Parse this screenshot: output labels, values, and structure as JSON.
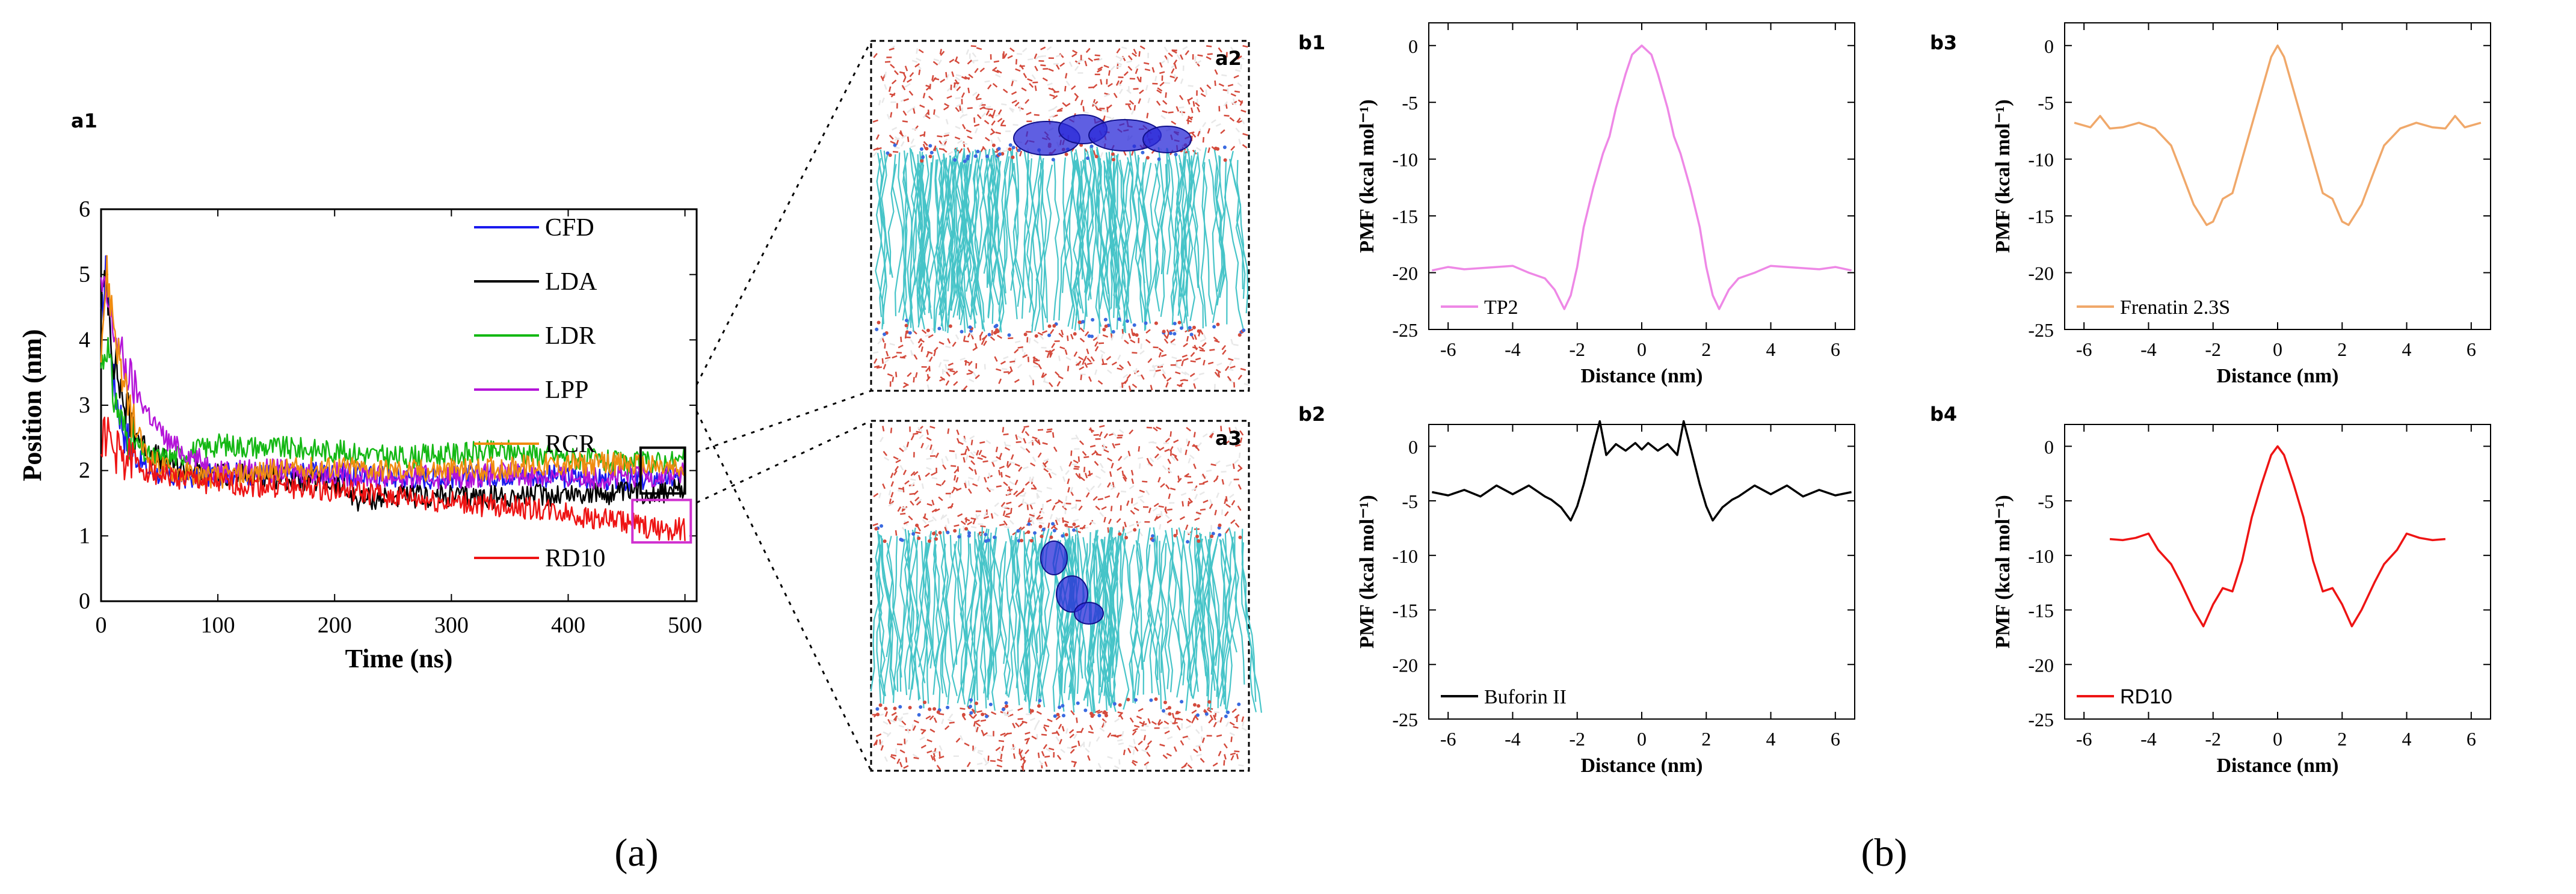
{
  "figure": {
    "caption_a": "(a)",
    "caption_b": "(b)"
  },
  "snapshots": {
    "a2": {
      "tag": "a2",
      "lipid_color": "#46c4c8",
      "water_color": "#d44a3c",
      "peptide_color": "#2a2ad8"
    },
    "a3": {
      "tag": "a3",
      "lipid_color": "#46c4c8",
      "water_color": "#d44a3c",
      "peptide_color": "#2a2ad8"
    }
  },
  "chart_data": [
    {
      "id": "a1",
      "tag": "a1",
      "type": "line",
      "xlabel": "Time (ns)",
      "ylabel": "Position (nm)",
      "xlim": [
        0,
        510
      ],
      "ylim": [
        0,
        6
      ],
      "xticks": [
        0,
        100,
        200,
        300,
        400,
        500
      ],
      "yticks": [
        0,
        1,
        2,
        3,
        4,
        5,
        6
      ],
      "series": [
        {
          "name": "CFD",
          "color": "#1a1aee",
          "x": [
            0,
            5,
            10,
            20,
            30,
            40,
            60,
            80,
            100,
            150,
            200,
            250,
            300,
            350,
            400,
            450,
            500
          ],
          "y": [
            4.2,
            5.2,
            3.4,
            2.6,
            2.2,
            2.0,
            1.9,
            1.9,
            1.95,
            1.95,
            1.95,
            1.9,
            1.9,
            1.95,
            1.9,
            1.85,
            1.9
          ]
        },
        {
          "name": "LDA",
          "color": "#000000",
          "x": [
            0,
            5,
            10,
            20,
            30,
            40,
            60,
            80,
            100,
            150,
            200,
            220,
            250,
            300,
            350,
            400,
            450,
            500
          ],
          "y": [
            4.6,
            4.9,
            3.8,
            3.0,
            2.6,
            2.3,
            2.1,
            2.0,
            1.95,
            1.9,
            1.8,
            1.55,
            1.6,
            1.6,
            1.6,
            1.65,
            1.65,
            1.7
          ]
        },
        {
          "name": "LDR",
          "color": "#14b814",
          "x": [
            0,
            5,
            10,
            20,
            30,
            40,
            60,
            80,
            100,
            150,
            200,
            250,
            300,
            350,
            400,
            450,
            500
          ],
          "y": [
            3.6,
            4.0,
            3.2,
            2.6,
            2.4,
            2.2,
            2.2,
            2.3,
            2.4,
            2.35,
            2.3,
            2.2,
            2.25,
            2.3,
            2.2,
            2.1,
            2.15
          ]
        },
        {
          "name": "LPP",
          "color": "#b414d8",
          "x": [
            0,
            5,
            10,
            20,
            30,
            40,
            50,
            60,
            80,
            100,
            150,
            200,
            250,
            300,
            350,
            400,
            450,
            500
          ],
          "y": [
            4.8,
            4.6,
            4.2,
            3.6,
            3.2,
            2.9,
            2.6,
            2.4,
            2.2,
            2.0,
            2.0,
            1.95,
            1.9,
            1.9,
            1.95,
            1.9,
            1.9,
            1.95
          ]
        },
        {
          "name": "RCR",
          "color": "#f08c10",
          "x": [
            0,
            5,
            10,
            20,
            30,
            40,
            60,
            80,
            100,
            150,
            200,
            250,
            300,
            350,
            400,
            450,
            500
          ],
          "y": [
            4.0,
            5.0,
            4.4,
            3.2,
            2.6,
            2.2,
            2.0,
            1.95,
            1.9,
            2.0,
            2.05,
            2.0,
            2.0,
            2.05,
            2.1,
            2.1,
            2.0
          ]
        },
        {
          "name": "RD10",
          "color": "#ee1414",
          "x": [
            0,
            5,
            10,
            20,
            40,
            60,
            100,
            150,
            200,
            250,
            300,
            350,
            400,
            430,
            450,
            470,
            500
          ],
          "y": [
            2.4,
            2.6,
            2.3,
            2.2,
            2.0,
            1.9,
            1.8,
            1.75,
            1.7,
            1.6,
            1.5,
            1.45,
            1.35,
            1.25,
            1.2,
            1.1,
            1.1
          ]
        }
      ]
    },
    {
      "id": "b1",
      "tag": "b1",
      "type": "line",
      "xlabel": "Distance (nm)",
      "ylabel": "PMF (kcal mol⁻¹)",
      "xlim": [
        -6.6,
        6.6
      ],
      "ylim": [
        -25,
        2
      ],
      "xticks": [
        -6,
        -4,
        -2,
        0,
        2,
        4,
        6
      ],
      "yticks": [
        0,
        -5,
        -10,
        -15,
        -20,
        -25
      ],
      "series": [
        {
          "name": "TP2",
          "color": "#ee88e6",
          "x": [
            -6.5,
            -6.0,
            -5.5,
            -5.0,
            -4.5,
            -4.0,
            -3.5,
            -3.0,
            -2.7,
            -2.4,
            -2.2,
            -2.0,
            -1.8,
            -1.5,
            -1.2,
            -1.0,
            -0.8,
            -0.5,
            -0.3,
            0.0,
            0.3,
            0.5,
            0.8,
            1.0,
            1.2,
            1.5,
            1.8,
            2.0,
            2.2,
            2.4,
            2.7,
            3.0,
            3.5,
            4.0,
            4.5,
            5.0,
            5.5,
            6.0,
            6.5
          ],
          "y": [
            -19.8,
            -19.5,
            -19.7,
            -19.6,
            -19.5,
            -19.4,
            -20.0,
            -20.5,
            -21.5,
            -23.2,
            -22.0,
            -19.5,
            -16.0,
            -12.5,
            -9.5,
            -8.0,
            -5.5,
            -2.5,
            -0.8,
            0.0,
            -0.8,
            -2.5,
            -5.5,
            -8.0,
            -9.5,
            -12.5,
            -16.0,
            -19.5,
            -22.0,
            -23.2,
            -21.5,
            -20.5,
            -20.0,
            -19.4,
            -19.5,
            -19.6,
            -19.7,
            -19.5,
            -19.8
          ]
        }
      ]
    },
    {
      "id": "b2",
      "tag": "b2",
      "type": "line",
      "xlabel": "Distance (nm)",
      "ylabel": "PMF (kcal mol⁻¹)",
      "xlim": [
        -6.6,
        6.6
      ],
      "ylim": [
        -25,
        2
      ],
      "xticks": [
        -6,
        -4,
        -2,
        0,
        2,
        4,
        6
      ],
      "yticks": [
        0,
        -5,
        -10,
        -15,
        -20,
        -25
      ],
      "series": [
        {
          "name": "Buforin II",
          "color": "#000000",
          "x": [
            -6.5,
            -6.0,
            -5.5,
            -5.0,
            -4.5,
            -4.0,
            -3.5,
            -3.0,
            -2.8,
            -2.5,
            -2.2,
            -2.0,
            -1.8,
            -1.5,
            -1.3,
            -1.1,
            -0.8,
            -0.5,
            -0.2,
            0.0,
            0.2,
            0.5,
            0.8,
            1.1,
            1.3,
            1.5,
            1.8,
            2.0,
            2.2,
            2.5,
            2.8,
            3.0,
            3.5,
            4.0,
            4.5,
            5.0,
            5.5,
            6.0,
            6.5
          ],
          "y": [
            -4.2,
            -4.5,
            -4.0,
            -4.6,
            -3.6,
            -4.4,
            -3.6,
            -4.6,
            -4.9,
            -5.6,
            -6.8,
            -5.5,
            -3.5,
            0.0,
            2.3,
            -0.8,
            0.2,
            -0.4,
            0.3,
            -0.3,
            0.3,
            -0.4,
            0.2,
            -0.8,
            2.3,
            0.0,
            -3.5,
            -5.5,
            -6.8,
            -5.6,
            -4.9,
            -4.6,
            -3.6,
            -4.4,
            -3.6,
            -4.6,
            -4.0,
            -4.5,
            -4.2
          ]
        }
      ]
    },
    {
      "id": "b3",
      "tag": "b3",
      "type": "line",
      "xlabel": "Distance (nm)",
      "ylabel": "PMF (kcal mol⁻¹)",
      "xlim": [
        -6.6,
        6.6
      ],
      "ylim": [
        -25,
        2
      ],
      "xticks": [
        -6,
        -4,
        -2,
        0,
        2,
        4,
        6
      ],
      "yticks": [
        0,
        -5,
        -10,
        -15,
        -20,
        -25
      ],
      "series": [
        {
          "name": "Frenatin 2.3S",
          "color": "#f0a86a",
          "x": [
            -6.3,
            -5.8,
            -5.5,
            -5.2,
            -4.8,
            -4.3,
            -3.8,
            -3.3,
            -3.0,
            -2.6,
            -2.2,
            -2.0,
            -1.7,
            -1.4,
            -1.1,
            -0.8,
            -0.5,
            -0.2,
            0.0,
            0.2,
            0.5,
            0.8,
            1.1,
            1.4,
            1.7,
            2.0,
            2.2,
            2.6,
            3.0,
            3.3,
            3.8,
            4.3,
            4.8,
            5.2,
            5.5,
            5.8,
            6.3
          ],
          "y": [
            -6.8,
            -7.2,
            -6.2,
            -7.3,
            -7.2,
            -6.8,
            -7.3,
            -8.8,
            -11.0,
            -14.0,
            -15.8,
            -15.5,
            -13.5,
            -13.0,
            -10.0,
            -7.0,
            -4.0,
            -1.0,
            0.0,
            -1.0,
            -4.0,
            -7.0,
            -10.0,
            -13.0,
            -13.5,
            -15.5,
            -15.8,
            -14.0,
            -11.0,
            -8.8,
            -7.3,
            -6.8,
            -7.2,
            -7.3,
            -6.2,
            -7.2,
            -6.8
          ]
        }
      ]
    },
    {
      "id": "b4",
      "tag": "b4",
      "type": "line",
      "xlabel": "Distance (nm)",
      "ylabel": "PMF (kcal mol⁻¹)",
      "xlim": [
        -6.6,
        6.6
      ],
      "ylim": [
        -25,
        2
      ],
      "xticks": [
        -6,
        -4,
        -2,
        0,
        2,
        4,
        6
      ],
      "yticks": [
        0,
        -5,
        -10,
        -15,
        -20,
        -25
      ],
      "series": [
        {
          "name": "RD10",
          "color": "#ee1414",
          "x": [
            -5.2,
            -4.8,
            -4.4,
            -4.0,
            -3.7,
            -3.3,
            -3.0,
            -2.6,
            -2.3,
            -2.0,
            -1.7,
            -1.4,
            -1.1,
            -0.8,
            -0.5,
            -0.2,
            0.0,
            0.2,
            0.5,
            0.8,
            1.1,
            1.4,
            1.7,
            2.0,
            2.3,
            2.6,
            3.0,
            3.3,
            3.7,
            4.0,
            4.4,
            4.8,
            5.2
          ],
          "y": [
            -8.5,
            -8.6,
            -8.4,
            -8.0,
            -9.5,
            -10.8,
            -12.5,
            -15.0,
            -16.5,
            -14.5,
            -13.0,
            -13.3,
            -10.5,
            -6.5,
            -3.5,
            -0.8,
            0.0,
            -0.8,
            -3.5,
            -6.5,
            -10.5,
            -13.3,
            -13.0,
            -14.5,
            -16.5,
            -15.0,
            -12.5,
            -10.8,
            -9.5,
            -8.0,
            -8.4,
            -8.6,
            -8.5
          ]
        }
      ]
    }
  ]
}
